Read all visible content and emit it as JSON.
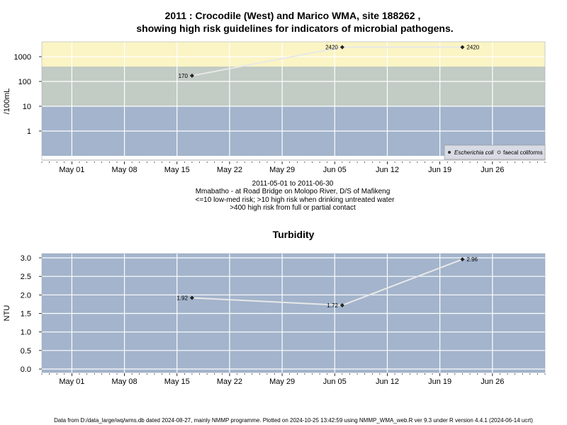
{
  "chart_data": [
    {
      "type": "line",
      "title_line1": "2011 : Crocodile (West) and Marico WMA, site 188262 ,",
      "title_line2": "showing high risk guidelines for indicators of microbial pathogens.",
      "ylabel": "/100mL",
      "y_scale": "log",
      "y_ticks": [
        "1",
        "10",
        "100",
        "1000"
      ],
      "x_ticks": [
        "May 01",
        "May 08",
        "May 15",
        "May 22",
        "May 29",
        "Jun 05",
        "Jun 12",
        "Jun 19",
        "Jun 26"
      ],
      "x_range": [
        "2011-04-27",
        "2011-07-03"
      ],
      "bands": [
        {
          "from": 0.1,
          "to": 10,
          "color": "#a3b4cc"
        },
        {
          "from": 10,
          "to": 400,
          "color": "#c2cbc4"
        },
        {
          "from": 400,
          "to": 4000,
          "color": "#fbf4c4"
        }
      ],
      "series": [
        {
          "name": "Escherichia coli",
          "x": [
            "2011-05-17",
            "2011-06-06",
            "2011-06-22"
          ],
          "y": [
            170,
            2420,
            2420
          ],
          "labels": [
            "170",
            "2420",
            "2420"
          ]
        },
        {
          "name": "faecal coliforms",
          "x": [],
          "y": [],
          "labels": []
        }
      ],
      "legend": "bottom-right",
      "caption": [
        "2011-05-01 to 2011-06-30",
        "Mmabatho - at Road Bridge on Molopo River, D/S of Mafikeng",
        "<=10 low-med risk; >10 high risk when drinking untreated water",
        ">400 high risk from full or partial contact"
      ]
    },
    {
      "type": "line",
      "title": "Turbidity",
      "ylabel": "NTU",
      "y_ticks": [
        "0.0",
        "0.5",
        "1.0",
        "1.5",
        "2.0",
        "2.5",
        "3.0"
      ],
      "ylim": [
        -0.1,
        3.1
      ],
      "x_ticks": [
        "May 01",
        "May 08",
        "May 15",
        "May 22",
        "May 29",
        "Jun 05",
        "Jun 12",
        "Jun 19",
        "Jun 26"
      ],
      "x_range": [
        "2011-04-27",
        "2011-07-03"
      ],
      "background": "#a3b4cc",
      "series": [
        {
          "x": [
            "2011-05-17",
            "2011-06-06",
            "2011-06-22"
          ],
          "y": [
            1.92,
            1.72,
            2.96
          ],
          "labels": [
            "1.92",
            "1.72",
            "2.96"
          ]
        }
      ]
    }
  ],
  "footer": "Data from D:/data_large/wq/wms.db dated 2024-08-27, mainly NMMP programme. Plotted on 2024-10-25 13:42:59 using NMMP_WMA_web.R ver 9.3 under R version 4.4.1 (2024-06-14 ucrt)"
}
